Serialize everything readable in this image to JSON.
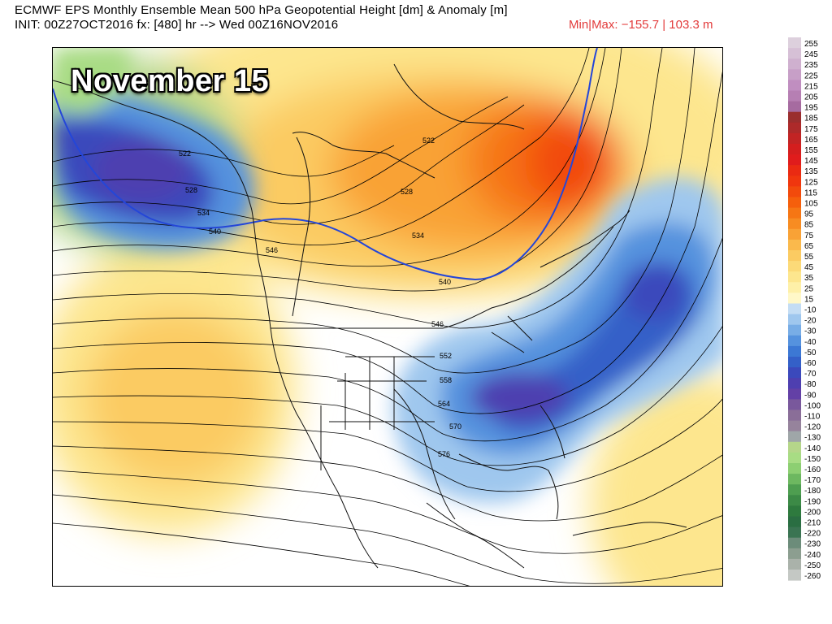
{
  "header": {
    "line1": "ECMWF EPS Monthly Ensemble Mean 500 hPa Geopotential Height [dm] & Anomaly [m]",
    "line2": "INIT: 00Z27OCT2016 fx: [480] hr --> Wed 00Z16NOV2016",
    "minmax": "Min|Max: −155.7 | 103.3 m"
  },
  "map": {
    "overlay_title": "November 15",
    "contour_labels": [
      "522",
      "522",
      "528",
      "528",
      "534",
      "534",
      "540",
      "540",
      "546",
      "546",
      "552",
      "558",
      "564",
      "570",
      "576"
    ]
  },
  "colorbar": {
    "labels": [
      "255",
      "245",
      "235",
      "225",
      "215",
      "205",
      "195",
      "185",
      "175",
      "165",
      "155",
      "145",
      "135",
      "125",
      "115",
      "105",
      "95",
      "85",
      "75",
      "65",
      "55",
      "45",
      "35",
      "25",
      "15",
      "-10",
      "-20",
      "-30",
      "-40",
      "-50",
      "-60",
      "-70",
      "-80",
      "-90",
      "-100",
      "-110",
      "-120",
      "-130",
      "-140",
      "-150",
      "-160",
      "-170",
      "-180",
      "-190",
      "-200",
      "-210",
      "-220",
      "-230",
      "-240",
      "-250",
      "-260"
    ],
    "colors": [
      "#ddd0dd",
      "#d6c0d6",
      "#cfb0cf",
      "#c79fc7",
      "#c08ec0",
      "#b67fb3",
      "#a66ba0",
      "#9a2e2e",
      "#ad2a2a",
      "#c22424",
      "#d41e1e",
      "#e01c1c",
      "#ea2a12",
      "#f0360e",
      "#f24a0c",
      "#f55f0c",
      "#f67614",
      "#f78c22",
      "#f9a236",
      "#fab94c",
      "#fbcb62",
      "#fcda78",
      "#fde68e",
      "#fef0a8",
      "#fff8c8",
      "#c4ddf4",
      "#9fc7ee",
      "#78ade6",
      "#5592de",
      "#3c78d4",
      "#3460c8",
      "#3b49bc",
      "#4e3fb0",
      "#6340a6",
      "#79589c",
      "#8a6e98",
      "#96839c",
      "#9fa6a8",
      "#b5d68a",
      "#a8dc84",
      "#8dcf72",
      "#6db860",
      "#4e9e50",
      "#3c8a46",
      "#2e7a3e",
      "#2a6e42",
      "#3a7452",
      "#6c8c7a",
      "#8c9e90",
      "#aab2aa",
      "#c4c8c4"
    ]
  }
}
